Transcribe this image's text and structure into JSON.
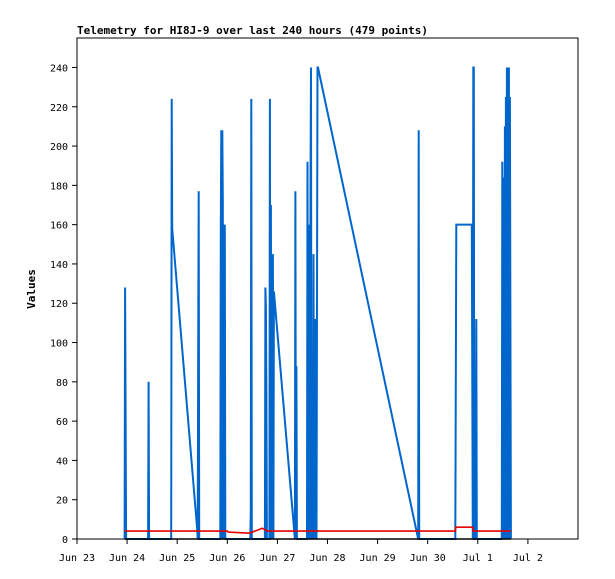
{
  "chart_data": {
    "type": "line",
    "title": "Telemetry for HI8J-9 over last 240 hours (479 points)",
    "xlabel": "",
    "ylabel": "Values",
    "xlim": [
      0,
      10
    ],
    "ylim": [
      0,
      255
    ],
    "grid": false,
    "legend": "none",
    "x_ticks": [
      {
        "x": 0,
        "label": "Jun 23"
      },
      {
        "x": 1,
        "label": "Jun 24"
      },
      {
        "x": 2,
        "label": "Jun 25"
      },
      {
        "x": 3,
        "label": "Jun 26"
      },
      {
        "x": 4,
        "label": "Jun 27"
      },
      {
        "x": 5,
        "label": "Jun 28"
      },
      {
        "x": 6,
        "label": "Jun 29"
      },
      {
        "x": 7,
        "label": "Jun 30"
      },
      {
        "x": 8,
        "label": "Jul 1"
      },
      {
        "x": 9,
        "label": "Jul 2"
      }
    ],
    "y_ticks": [
      0,
      20,
      40,
      60,
      80,
      100,
      120,
      140,
      160,
      180,
      200,
      220,
      240
    ],
    "series": [
      {
        "color": "#0066cc",
        "points": [
          [
            0.95,
            0
          ],
          [
            0.96,
            128
          ],
          [
            0.97,
            64
          ],
          [
            0.98,
            0
          ],
          [
            1.42,
            0
          ],
          [
            1.43,
            80
          ],
          [
            1.44,
            0
          ],
          [
            1.88,
            0
          ],
          [
            1.89,
            224
          ],
          [
            1.9,
            158
          ],
          [
            2.4,
            5
          ],
          [
            2.41,
            0
          ],
          [
            2.42,
            97
          ],
          [
            2.43,
            177
          ],
          [
            2.44,
            0
          ],
          [
            2.86,
            0
          ],
          [
            2.87,
            160
          ],
          [
            2.88,
            208
          ],
          [
            2.89,
            0
          ],
          [
            2.9,
            208
          ],
          [
            2.91,
            173
          ],
          [
            2.92,
            0
          ],
          [
            2.93,
            104
          ],
          [
            2.94,
            0
          ],
          [
            2.95,
            160
          ],
          [
            2.96,
            0
          ],
          [
            3.46,
            0
          ],
          [
            3.47,
            15
          ],
          [
            3.48,
            224
          ],
          [
            3.49,
            0
          ],
          [
            3.75,
            0
          ],
          [
            3.76,
            128
          ],
          [
            3.77,
            118
          ],
          [
            3.78,
            74
          ],
          [
            3.79,
            0
          ],
          [
            3.8,
            0
          ],
          [
            3.84,
            0
          ],
          [
            3.85,
            224
          ],
          [
            3.86,
            0
          ],
          [
            3.87,
            170
          ],
          [
            3.88,
            0
          ],
          [
            3.89,
            120
          ],
          [
            3.9,
            72
          ],
          [
            3.91,
            145
          ],
          [
            3.92,
            0
          ],
          [
            3.93,
            126
          ],
          [
            4.35,
            0
          ],
          [
            4.36,
            177
          ],
          [
            4.37,
            0
          ],
          [
            4.38,
            88
          ],
          [
            4.39,
            0
          ],
          [
            4.59,
            0
          ],
          [
            4.6,
            192
          ],
          [
            4.61,
            0
          ],
          [
            4.62,
            160
          ],
          [
            4.63,
            0
          ],
          [
            4.64,
            60
          ],
          [
            4.65,
            0
          ],
          [
            4.66,
            180
          ],
          [
            4.67,
            240
          ],
          [
            4.68,
            0
          ],
          [
            4.7,
            65
          ],
          [
            4.71,
            0
          ],
          [
            4.72,
            145
          ],
          [
            4.73,
            0
          ],
          [
            4.74,
            112
          ],
          [
            4.75,
            0
          ],
          [
            4.76,
            56
          ],
          [
            4.77,
            112
          ],
          [
            4.78,
            0
          ],
          [
            4.8,
            240
          ],
          [
            4.81,
            240
          ],
          [
            6.81,
            0
          ],
          [
            6.82,
            208
          ],
          [
            6.83,
            0
          ],
          [
            7.55,
            0
          ],
          [
            7.56,
            80
          ],
          [
            7.57,
            160
          ],
          [
            7.58,
            160
          ],
          [
            7.88,
            160
          ],
          [
            7.89,
            80
          ],
          [
            7.9,
            0
          ],
          [
            7.91,
            240
          ],
          [
            7.92,
            240
          ],
          [
            7.93,
            0
          ],
          [
            7.96,
            0
          ],
          [
            7.97,
            112
          ],
          [
            7.98,
            0
          ],
          [
            8.48,
            0
          ],
          [
            8.49,
            192
          ],
          [
            8.5,
            0
          ],
          [
            8.51,
            112
          ],
          [
            8.52,
            184
          ],
          [
            8.53,
            0
          ],
          [
            8.54,
            210
          ],
          [
            8.55,
            0
          ],
          [
            8.56,
            225
          ],
          [
            8.57,
            0
          ],
          [
            8.58,
            240
          ],
          [
            8.59,
            0
          ],
          [
            8.6,
            225
          ],
          [
            8.61,
            0
          ],
          [
            8.62,
            240
          ],
          [
            8.63,
            0
          ],
          [
            8.64,
            225
          ],
          [
            8.65,
            112
          ],
          [
            8.66,
            0
          ]
        ]
      },
      {
        "color": "#e60000",
        "points": [
          [
            0.95,
            4
          ],
          [
            3.0,
            4
          ],
          [
            3.02,
            3.5
          ],
          [
            3.4,
            3
          ],
          [
            3.45,
            3
          ],
          [
            3.55,
            4
          ],
          [
            3.7,
            5.5
          ],
          [
            3.8,
            4
          ],
          [
            7.55,
            4
          ],
          [
            7.56,
            6
          ],
          [
            7.9,
            6
          ],
          [
            7.91,
            4
          ],
          [
            8.66,
            4
          ]
        ]
      },
      {
        "color": "#000000",
        "points": [
          [
            0.95,
            0
          ],
          [
            8.66,
            0
          ]
        ]
      }
    ]
  }
}
